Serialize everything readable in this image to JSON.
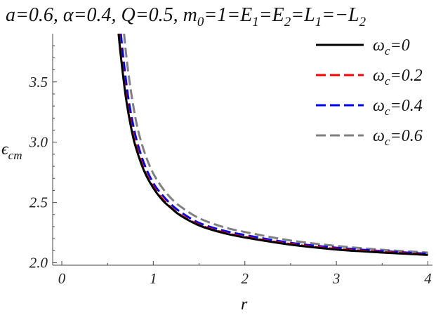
{
  "chart_data": {
    "type": "line",
    "title": "a=0.6, α=0.4, Q=0.5, m0=1=E1=E2=L1=−L2",
    "title_parts": {
      "a_eq": "a=0.6, ",
      "alpha_sym": "α",
      "alpha_eq": "=0.4, Q=0.5, m",
      "m_sub": "0",
      "mid": "=1=E",
      "e1_sub": "1",
      "e2": "=E",
      "e2_sub": "2",
      "l1": "=L",
      "l1_sub": "1",
      "l2": "=−L",
      "l2_sub": "2"
    },
    "xlabel": "r",
    "ylabel": "ϵ",
    "ylabel_sub": "cm",
    "xlim": [
      -0.1,
      4.05
    ],
    "ylim": [
      1.98,
      3.9
    ],
    "xticks": [
      0,
      1,
      2,
      3,
      4
    ],
    "xtick_labels": [
      "0",
      "1",
      "2",
      "3",
      "4"
    ],
    "yticks": [
      2.0,
      2.5,
      3.0,
      3.5
    ],
    "ytick_labels": [
      "2.0",
      "2.5",
      "3.0",
      "3.5"
    ],
    "grid": false,
    "legend_position": "top-right",
    "series": [
      {
        "name": "ωc=0",
        "symbol": "ω",
        "sub": "c",
        "value_text": "=0",
        "color": "#000000",
        "dash": "solid",
        "x": [
          0.62,
          0.65,
          0.7,
          0.75,
          0.8,
          0.9,
          1.0,
          1.1,
          1.2,
          1.3,
          1.5,
          1.75,
          2.0,
          2.5,
          3.0,
          3.5,
          4.0
        ],
        "y": [
          3.9,
          3.68,
          3.37,
          3.15,
          2.98,
          2.76,
          2.62,
          2.52,
          2.45,
          2.39,
          2.31,
          2.25,
          2.21,
          2.15,
          2.11,
          2.085,
          2.065
        ]
      },
      {
        "name": "ωc=0.2",
        "symbol": "ω",
        "sub": "c",
        "value_text": "=0.2",
        "color": "#ff0000",
        "dash": "dashed",
        "x": [
          0.625,
          0.655,
          0.7,
          0.75,
          0.8,
          0.9,
          1.0,
          1.1,
          1.2,
          1.3,
          1.5,
          1.75,
          2.0,
          2.5,
          3.0,
          3.5,
          4.0
        ],
        "y": [
          3.9,
          3.68,
          3.39,
          3.17,
          3.0,
          2.77,
          2.63,
          2.53,
          2.455,
          2.395,
          2.315,
          2.255,
          2.215,
          2.155,
          2.115,
          2.09,
          2.068
        ]
      },
      {
        "name": "ωc=0.4",
        "symbol": "ω",
        "sub": "c",
        "value_text": "=0.4",
        "color": "#0000ff",
        "dash": "dashed",
        "x": [
          0.645,
          0.675,
          0.72,
          0.77,
          0.82,
          0.9,
          1.0,
          1.1,
          1.2,
          1.3,
          1.5,
          1.75,
          2.0,
          2.5,
          3.0,
          3.5,
          4.0
        ],
        "y": [
          3.9,
          3.68,
          3.4,
          3.18,
          3.01,
          2.82,
          2.66,
          2.56,
          2.48,
          2.42,
          2.33,
          2.27,
          2.23,
          2.165,
          2.125,
          2.097,
          2.075
        ]
      },
      {
        "name": "ωc=0.6",
        "symbol": "ω",
        "sub": "c",
        "value_text": "=0.6",
        "color": "#808080",
        "dash": "dashed",
        "x": [
          0.68,
          0.71,
          0.75,
          0.8,
          0.85,
          0.92,
          1.0,
          1.1,
          1.2,
          1.3,
          1.5,
          1.75,
          2.0,
          2.5,
          3.0,
          3.5,
          4.0
        ],
        "y": [
          3.9,
          3.68,
          3.45,
          3.22,
          3.05,
          2.88,
          2.74,
          2.62,
          2.53,
          2.465,
          2.37,
          2.3,
          2.255,
          2.185,
          2.14,
          2.108,
          2.085
        ]
      }
    ]
  }
}
